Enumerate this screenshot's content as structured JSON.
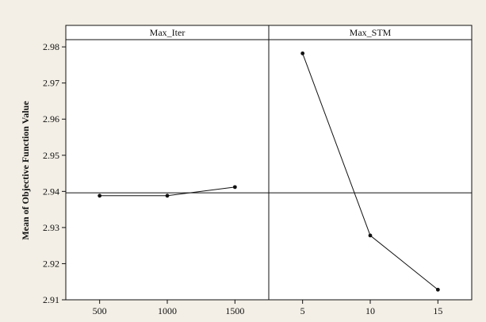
{
  "chart_data": {
    "type": "line",
    "ylabel": "Mean of Objective Function Value",
    "ylim": [
      2.91,
      2.982
    ],
    "yticks": [
      "2.91",
      "2.92",
      "2.93",
      "2.94",
      "2.95",
      "2.96",
      "2.97",
      "2.98"
    ],
    "reference_line": 2.9396,
    "grid": false,
    "colors": {
      "background": "#f3efe6",
      "plot": "#ffffff",
      "ink": "#111111"
    },
    "panels": [
      {
        "title": "Max_Iter",
        "categories": [
          "500",
          "1000",
          "1500"
        ],
        "values": [
          2.9388,
          2.9388,
          2.9412
        ]
      },
      {
        "title": "Max_STM",
        "categories": [
          "5",
          "10",
          "15"
        ],
        "values": [
          2.9782,
          2.9278,
          2.9128
        ]
      }
    ]
  }
}
